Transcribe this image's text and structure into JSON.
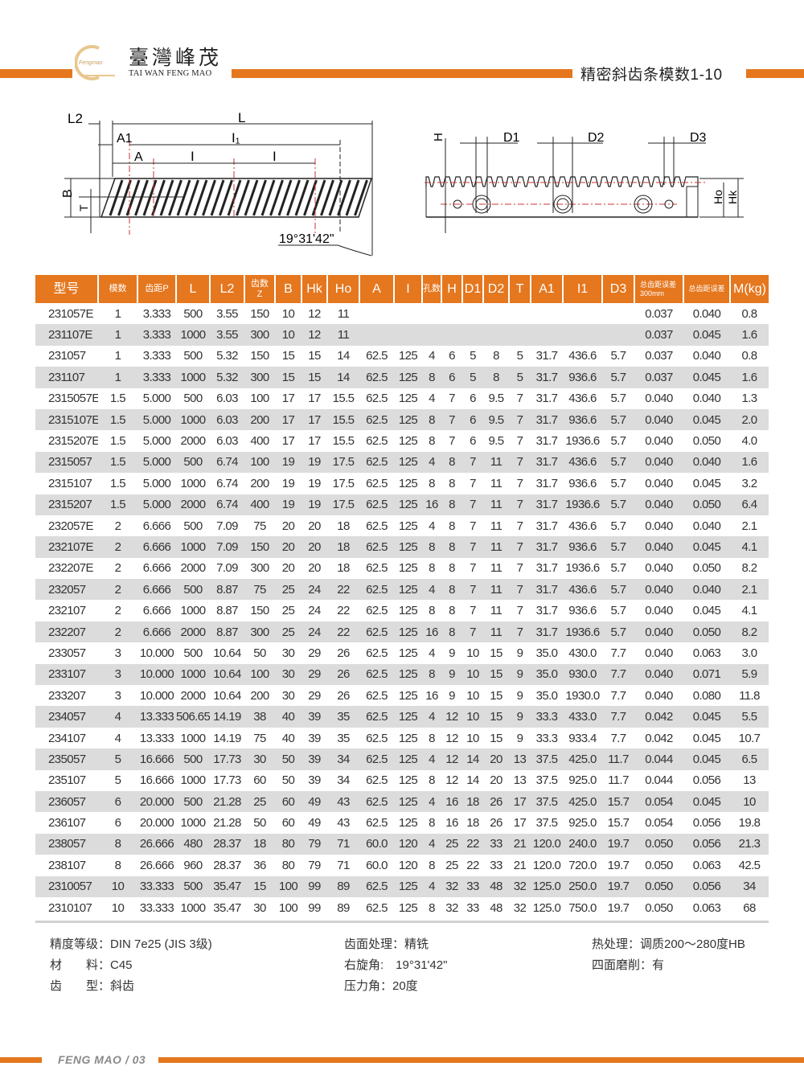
{
  "header": {
    "logo_text": "Fengmao",
    "brand_cn": "臺灣峰茂",
    "brand_en": "TAI WAN FENG MAO",
    "page_title": "精密斜齿条模数1-10",
    "accent_color": "#e5771e"
  },
  "drawing": {
    "side_labels": {
      "L2": "L2",
      "L": "L",
      "A1": "A1",
      "I1": "I₁",
      "A": "A",
      "I": "I",
      "B": "B",
      "T": "T",
      "angle": "19°31'42\""
    },
    "front_labels": {
      "H": "H",
      "D1": "D1",
      "D2": "D2",
      "D3": "D3",
      "Ho": "Ho",
      "Hk": "Hk"
    }
  },
  "table": {
    "headers": [
      "型号",
      "模数",
      "齿距P",
      "L",
      "L2",
      "齿数Z",
      "B",
      "Hk",
      "Ho",
      "A",
      "I",
      "孔数",
      "H",
      "D1",
      "D2",
      "T",
      "A1",
      "I1",
      "D3",
      "总齿距误差300mm",
      "总齿距误差",
      "M(kg)"
    ],
    "rows": [
      [
        "231057E",
        "1",
        "3.333",
        "500",
        "3.55",
        "150",
        "10",
        "12",
        "11",
        "",
        "",
        "",
        "",
        "",
        "",
        "",
        "",
        "",
        "",
        "0.037",
        "0.040",
        "0.8"
      ],
      [
        "231107E",
        "1",
        "3.333",
        "1000",
        "3.55",
        "300",
        "10",
        "12",
        "11",
        "",
        "",
        "",
        "",
        "",
        "",
        "",
        "",
        "",
        "",
        "0.037",
        "0.045",
        "1.6"
      ],
      [
        "231057",
        "1",
        "3.333",
        "500",
        "5.32",
        "150",
        "15",
        "15",
        "14",
        "62.5",
        "125",
        "4",
        "6",
        "5",
        "8",
        "5",
        "31.7",
        "436.6",
        "5.7",
        "0.037",
        "0.040",
        "0.8"
      ],
      [
        "231107",
        "1",
        "3.333",
        "1000",
        "5.32",
        "300",
        "15",
        "15",
        "14",
        "62.5",
        "125",
        "8",
        "6",
        "5",
        "8",
        "5",
        "31.7",
        "936.6",
        "5.7",
        "0.037",
        "0.045",
        "1.6"
      ],
      [
        "2315057E",
        "1.5",
        "5.000",
        "500",
        "6.03",
        "100",
        "17",
        "17",
        "15.5",
        "62.5",
        "125",
        "4",
        "7",
        "6",
        "9.5",
        "7",
        "31.7",
        "436.6",
        "5.7",
        "0.040",
        "0.040",
        "1.3"
      ],
      [
        "2315107E",
        "1.5",
        "5.000",
        "1000",
        "6.03",
        "200",
        "17",
        "17",
        "15.5",
        "62.5",
        "125",
        "8",
        "7",
        "6",
        "9.5",
        "7",
        "31.7",
        "936.6",
        "5.7",
        "0.040",
        "0.045",
        "2.0"
      ],
      [
        "2315207E",
        "1.5",
        "5.000",
        "2000",
        "6.03",
        "400",
        "17",
        "17",
        "15.5",
        "62.5",
        "125",
        "8",
        "7",
        "6",
        "9.5",
        "7",
        "31.7",
        "1936.6",
        "5.7",
        "0.040",
        "0.050",
        "4.0"
      ],
      [
        "2315057",
        "1.5",
        "5.000",
        "500",
        "6.74",
        "100",
        "19",
        "19",
        "17.5",
        "62.5",
        "125",
        "4",
        "8",
        "7",
        "11",
        "7",
        "31.7",
        "436.6",
        "5.7",
        "0.040",
        "0.040",
        "1.6"
      ],
      [
        "2315107",
        "1.5",
        "5.000",
        "1000",
        "6.74",
        "200",
        "19",
        "19",
        "17.5",
        "62.5",
        "125",
        "8",
        "8",
        "7",
        "11",
        "7",
        "31.7",
        "936.6",
        "5.7",
        "0.040",
        "0.045",
        "3.2"
      ],
      [
        "2315207",
        "1.5",
        "5.000",
        "2000",
        "6.74",
        "400",
        "19",
        "19",
        "17.5",
        "62.5",
        "125",
        "16",
        "8",
        "7",
        "11",
        "7",
        "31.7",
        "1936.6",
        "5.7",
        "0.040",
        "0.050",
        "6.4"
      ],
      [
        "232057E",
        "2",
        "6.666",
        "500",
        "7.09",
        "75",
        "20",
        "20",
        "18",
        "62.5",
        "125",
        "4",
        "8",
        "7",
        "11",
        "7",
        "31.7",
        "436.6",
        "5.7",
        "0.040",
        "0.040",
        "2.1"
      ],
      [
        "232107E",
        "2",
        "6.666",
        "1000",
        "7.09",
        "150",
        "20",
        "20",
        "18",
        "62.5",
        "125",
        "8",
        "8",
        "7",
        "11",
        "7",
        "31.7",
        "936.6",
        "5.7",
        "0.040",
        "0.045",
        "4.1"
      ],
      [
        "232207E",
        "2",
        "6.666",
        "2000",
        "7.09",
        "300",
        "20",
        "20",
        "18",
        "62.5",
        "125",
        "8",
        "8",
        "7",
        "11",
        "7",
        "31.7",
        "1936.6",
        "5.7",
        "0.040",
        "0.050",
        "8.2"
      ],
      [
        "232057",
        "2",
        "6.666",
        "500",
        "8.87",
        "75",
        "25",
        "24",
        "22",
        "62.5",
        "125",
        "4",
        "8",
        "7",
        "11",
        "7",
        "31.7",
        "436.6",
        "5.7",
        "0.040",
        "0.040",
        "2.1"
      ],
      [
        "232107",
        "2",
        "6.666",
        "1000",
        "8.87",
        "150",
        "25",
        "24",
        "22",
        "62.5",
        "125",
        "8",
        "8",
        "7",
        "11",
        "7",
        "31.7",
        "936.6",
        "5.7",
        "0.040",
        "0.045",
        "4.1"
      ],
      [
        "232207",
        "2",
        "6.666",
        "2000",
        "8.87",
        "300",
        "25",
        "24",
        "22",
        "62.5",
        "125",
        "16",
        "8",
        "7",
        "11",
        "7",
        "31.7",
        "1936.6",
        "5.7",
        "0.040",
        "0.050",
        "8.2"
      ],
      [
        "233057",
        "3",
        "10.000",
        "500",
        "10.64",
        "50",
        "30",
        "29",
        "26",
        "62.5",
        "125",
        "4",
        "9",
        "10",
        "15",
        "9",
        "35.0",
        "430.0",
        "7.7",
        "0.040",
        "0.063",
        "3.0"
      ],
      [
        "233107",
        "3",
        "10.000",
        "1000",
        "10.64",
        "100",
        "30",
        "29",
        "26",
        "62.5",
        "125",
        "8",
        "9",
        "10",
        "15",
        "9",
        "35.0",
        "930.0",
        "7.7",
        "0.040",
        "0.071",
        "5.9"
      ],
      [
        "233207",
        "3",
        "10.000",
        "2000",
        "10.64",
        "200",
        "30",
        "29",
        "26",
        "62.5",
        "125",
        "16",
        "9",
        "10",
        "15",
        "9",
        "35.0",
        "1930.0",
        "7.7",
        "0.040",
        "0.080",
        "11.8"
      ],
      [
        "234057",
        "4",
        "13.333",
        "506.65",
        "14.19",
        "38",
        "40",
        "39",
        "35",
        "62.5",
        "125",
        "4",
        "12",
        "10",
        "15",
        "9",
        "33.3",
        "433.0",
        "7.7",
        "0.042",
        "0.045",
        "5.5"
      ],
      [
        "234107",
        "4",
        "13.333",
        "1000",
        "14.19",
        "75",
        "40",
        "39",
        "35",
        "62.5",
        "125",
        "8",
        "12",
        "10",
        "15",
        "9",
        "33.3",
        "933.4",
        "7.7",
        "0.042",
        "0.045",
        "10.7"
      ],
      [
        "235057",
        "5",
        "16.666",
        "500",
        "17.73",
        "30",
        "50",
        "39",
        "34",
        "62.5",
        "125",
        "4",
        "12",
        "14",
        "20",
        "13",
        "37.5",
        "425.0",
        "11.7",
        "0.044",
        "0.045",
        "6.5"
      ],
      [
        "235107",
        "5",
        "16.666",
        "1000",
        "17.73",
        "60",
        "50",
        "39",
        "34",
        "62.5",
        "125",
        "8",
        "12",
        "14",
        "20",
        "13",
        "37.5",
        "925.0",
        "11.7",
        "0.044",
        "0.056",
        "13"
      ],
      [
        "236057",
        "6",
        "20.000",
        "500",
        "21.28",
        "25",
        "60",
        "49",
        "43",
        "62.5",
        "125",
        "4",
        "16",
        "18",
        "26",
        "17",
        "37.5",
        "425.0",
        "15.7",
        "0.054",
        "0.045",
        "10"
      ],
      [
        "236107",
        "6",
        "20.000",
        "1000",
        "21.28",
        "50",
        "60",
        "49",
        "43",
        "62.5",
        "125",
        "8",
        "16",
        "18",
        "26",
        "17",
        "37.5",
        "925.0",
        "15.7",
        "0.054",
        "0.056",
        "19.8"
      ],
      [
        "238057",
        "8",
        "26.666",
        "480",
        "28.37",
        "18",
        "80",
        "79",
        "71",
        "60.0",
        "120",
        "4",
        "25",
        "22",
        "33",
        "21",
        "120.0",
        "240.0",
        "19.7",
        "0.050",
        "0.056",
        "21.3"
      ],
      [
        "238107",
        "8",
        "26.666",
        "960",
        "28.37",
        "36",
        "80",
        "79",
        "71",
        "60.0",
        "120",
        "8",
        "25",
        "22",
        "33",
        "21",
        "120.0",
        "720.0",
        "19.7",
        "0.050",
        "0.063",
        "42.5"
      ],
      [
        "2310057",
        "10",
        "33.333",
        "500",
        "35.47",
        "15",
        "100",
        "99",
        "89",
        "62.5",
        "125",
        "4",
        "32",
        "33",
        "48",
        "32",
        "125.0",
        "250.0",
        "19.7",
        "0.050",
        "0.056",
        "34"
      ],
      [
        "2310107",
        "10",
        "33.333",
        "1000",
        "35.47",
        "30",
        "100",
        "99",
        "89",
        "62.5",
        "125",
        "8",
        "32",
        "33",
        "48",
        "32",
        "125.0",
        "750.0",
        "19.7",
        "0.050",
        "0.063",
        "68"
      ]
    ]
  },
  "specs": {
    "precision": "精度等级：DIN 7e25 (JIS 3级)",
    "material": "材　　料：C45",
    "tooth_type": "齿　　型：斜齿",
    "surface": "齿面处理：精铣",
    "helix": "右旋角:　19°31'42\"",
    "pressure": "压力角：20度",
    "heat": "热处理：调质200～280度HB",
    "grinding": "四面磨削：有"
  },
  "footer": {
    "text": "FENG MAO / 03"
  }
}
